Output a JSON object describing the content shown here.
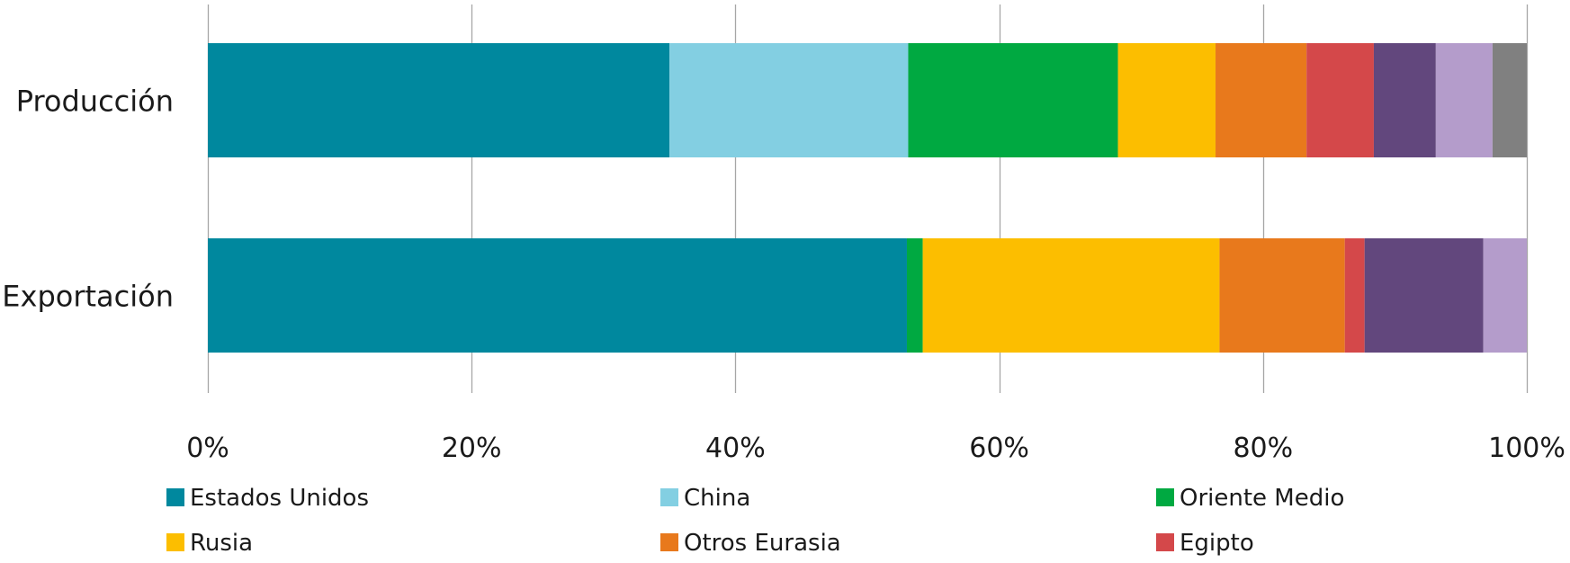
{
  "chart_data": {
    "type": "bar",
    "orientation": "horizontal",
    "stacked": "percent",
    "title": "",
    "xlabel": "",
    "ylabel": "",
    "xlim": [
      0,
      100
    ],
    "x_ticks": [
      "0%",
      "20%",
      "40%",
      "60%",
      "80%",
      "100%"
    ],
    "x_tick_values": [
      0,
      20,
      40,
      60,
      80,
      100
    ],
    "grid": "vertical",
    "legend_position": "bottom",
    "categories": [
      "Producción",
      "Exportación"
    ],
    "series": [
      {
        "name": "Estados Unidos",
        "color": "#00889e",
        "values": [
          35.0,
          53.0
        ]
      },
      {
        "name": "China",
        "color": "#83cfe2",
        "values": [
          18.1,
          0.0
        ]
      },
      {
        "name": "Oriente Medio",
        "color": "#00a941",
        "values": [
          15.9,
          1.2
        ]
      },
      {
        "name": "Rusia",
        "color": "#fcbe00",
        "values": [
          7.4,
          22.5
        ]
      },
      {
        "name": "Otros Eurasia",
        "color": "#e8791c",
        "values": [
          6.9,
          9.5
        ]
      },
      {
        "name": "Egipto",
        "color": "#d4484a",
        "values": [
          5.1,
          1.5
        ]
      },
      {
        "name": "",
        "color": "#62477d",
        "values": [
          4.7,
          9.0
        ]
      },
      {
        "name": "",
        "color": "#b49ccb",
        "values": [
          4.3,
          3.3
        ]
      },
      {
        "name": "",
        "color": "#808080",
        "values": [
          2.6,
          0.0
        ]
      }
    ],
    "legend_series_count": 6
  }
}
